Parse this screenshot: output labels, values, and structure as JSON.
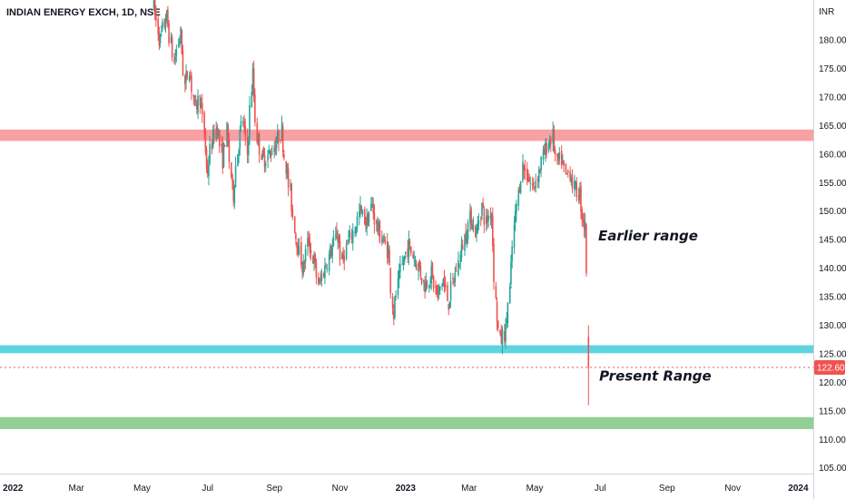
{
  "header": {
    "title": "INDIAN ENERGY EXCH, 1D, NSE"
  },
  "colors": {
    "up": "#26a69a",
    "down": "#ef5350",
    "resistance_zone": "#f7a1a5",
    "support_zone_blue": "#5fd4e0",
    "support_zone_green": "#93cf95",
    "price_line": "#ef5350",
    "axis_line": "#d1d4dc"
  },
  "chart_data": {
    "type": "candlestick",
    "title": "INDIAN ENERGY EXCH, 1D, NSE",
    "currency_label": "INR",
    "y_range": [
      104,
      187
    ],
    "y_ticks": [
      105,
      110,
      115,
      120,
      125,
      130,
      135,
      140,
      145,
      150,
      155,
      160,
      165,
      170,
      175,
      180
    ],
    "y_tick_labels": [
      "105.00",
      "110.00",
      "115.00",
      "120.00",
      "125.00",
      "130.00",
      "135.00",
      "140.00",
      "145.00",
      "150.00",
      "155.00",
      "160.00",
      "165.00",
      "170.00",
      "175.00",
      "180.00"
    ],
    "x_range": [
      "2021-12-20",
      "2024-01-15"
    ],
    "x_ticks": [
      {
        "date": "2022-01-01",
        "label": "2022",
        "bold": true
      },
      {
        "date": "2022-03-01",
        "label": "Mar"
      },
      {
        "date": "2022-05-01",
        "label": "May"
      },
      {
        "date": "2022-07-01",
        "label": "Jul"
      },
      {
        "date": "2022-09-01",
        "label": "Sep"
      },
      {
        "date": "2022-11-01",
        "label": "Nov"
      },
      {
        "date": "2023-01-01",
        "label": "2023",
        "bold": true
      },
      {
        "date": "2023-03-01",
        "label": "Mar"
      },
      {
        "date": "2023-05-01",
        "label": "May"
      },
      {
        "date": "2023-07-01",
        "label": "Jul"
      },
      {
        "date": "2023-09-01",
        "label": "Sep"
      },
      {
        "date": "2023-11-01",
        "label": "Nov"
      },
      {
        "date": "2024-01-01",
        "label": "2024",
        "bold": true
      }
    ],
    "price_path": [
      [
        "2022-05-12",
        186
      ],
      [
        "2022-05-18",
        180
      ],
      [
        "2022-05-24",
        184
      ],
      [
        "2022-05-31",
        176
      ],
      [
        "2022-06-06",
        181
      ],
      [
        "2022-06-10",
        172
      ],
      [
        "2022-06-14",
        175
      ],
      [
        "2022-06-20",
        168
      ],
      [
        "2022-06-24",
        170
      ],
      [
        "2022-06-28",
        164
      ],
      [
        "2022-07-01",
        157
      ],
      [
        "2022-07-05",
        162
      ],
      [
        "2022-07-10",
        165
      ],
      [
        "2022-07-15",
        159
      ],
      [
        "2022-07-19",
        164
      ],
      [
        "2022-07-25",
        153
      ],
      [
        "2022-07-30",
        162
      ],
      [
        "2022-08-03",
        166
      ],
      [
        "2022-08-07",
        160
      ],
      [
        "2022-08-12",
        174
      ],
      [
        "2022-08-16",
        163
      ],
      [
        "2022-08-22",
        159
      ],
      [
        "2022-08-28",
        160
      ],
      [
        "2022-09-03",
        162
      ],
      [
        "2022-09-08",
        164
      ],
      [
        "2022-09-12",
        158
      ],
      [
        "2022-09-16",
        153
      ],
      [
        "2022-09-22",
        145
      ],
      [
        "2022-09-28",
        140
      ],
      [
        "2022-10-03",
        145
      ],
      [
        "2022-10-08",
        141
      ],
      [
        "2022-10-13",
        137
      ],
      [
        "2022-10-18",
        140
      ],
      [
        "2022-10-24",
        143
      ],
      [
        "2022-10-30",
        146
      ],
      [
        "2022-11-03",
        141
      ],
      [
        "2022-11-08",
        144
      ],
      [
        "2022-11-15",
        147
      ],
      [
        "2022-11-20",
        150
      ],
      [
        "2022-11-26",
        148
      ],
      [
        "2022-12-01",
        151
      ],
      [
        "2022-12-06",
        147
      ],
      [
        "2022-12-11",
        145
      ],
      [
        "2022-12-16",
        143
      ],
      [
        "2022-12-21",
        132
      ],
      [
        "2022-12-25",
        137
      ],
      [
        "2022-12-30",
        141
      ],
      [
        "2023-01-04",
        144
      ],
      [
        "2023-01-09",
        142
      ],
      [
        "2023-01-14",
        140
      ],
      [
        "2023-01-19",
        137
      ],
      [
        "2023-01-25",
        139
      ],
      [
        "2023-01-31",
        135
      ],
      [
        "2023-02-05",
        138
      ],
      [
        "2023-02-10",
        134
      ],
      [
        "2023-02-15",
        138
      ],
      [
        "2023-02-21",
        142
      ],
      [
        "2023-02-26",
        146
      ],
      [
        "2023-03-03",
        149
      ],
      [
        "2023-03-08",
        146
      ],
      [
        "2023-03-13",
        151
      ],
      [
        "2023-03-17",
        148
      ],
      [
        "2023-03-22",
        150
      ],
      [
        "2023-03-26",
        134
      ],
      [
        "2023-03-30",
        127
      ],
      [
        "2023-04-04",
        129
      ],
      [
        "2023-04-08",
        136
      ],
      [
        "2023-04-12",
        147
      ],
      [
        "2023-04-16",
        153
      ],
      [
        "2023-04-20",
        158
      ],
      [
        "2023-04-25",
        156
      ],
      [
        "2023-04-30",
        154
      ],
      [
        "2023-05-05",
        157
      ],
      [
        "2023-05-10",
        160
      ],
      [
        "2023-05-14",
        162
      ],
      [
        "2023-05-18",
        163
      ],
      [
        "2023-05-22",
        158
      ],
      [
        "2023-05-26",
        159
      ],
      [
        "2023-05-30",
        156
      ],
      [
        "2023-06-03",
        157
      ],
      [
        "2023-06-07",
        154
      ],
      [
        "2023-06-12",
        153
      ],
      [
        "2023-06-15",
        149
      ],
      [
        "2023-06-17",
        147
      ],
      [
        "2023-06-19",
        137
      ]
    ],
    "gap_candle": {
      "date": "2023-06-20",
      "open": 128,
      "high": 130,
      "low": 116,
      "close": 122.6
    },
    "horizontal_zones": [
      {
        "name": "resistance-zone",
        "from": 162.3,
        "to": 164.3,
        "color": "#f7a1a5"
      },
      {
        "name": "support-zone-blue",
        "from": 125.1,
        "to": 126.5,
        "color": "#5fd4e0"
      },
      {
        "name": "support-zone-green",
        "from": 111.8,
        "to": 113.9,
        "color": "#93cf95"
      }
    ],
    "last_price": 122.6,
    "last_price_label": "122.60",
    "annotations": [
      {
        "text": "Earlier range",
        "date": "2023-06-29",
        "price": 144.9
      },
      {
        "text": "Present Range",
        "date": "2023-06-30",
        "price": 120.3
      }
    ]
  }
}
